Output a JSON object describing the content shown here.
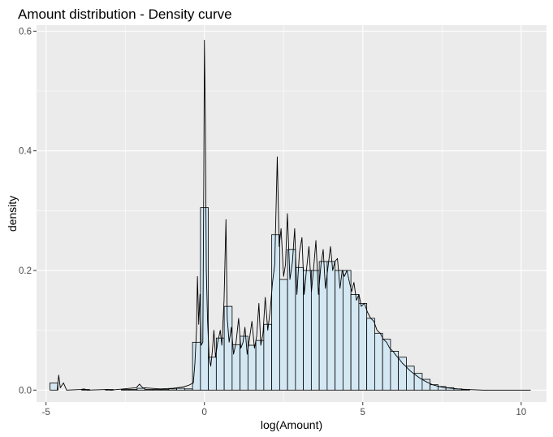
{
  "chart_data": {
    "type": "histogram+density",
    "title": "Amount distribution - Density curve",
    "xlabel": "log(Amount)",
    "ylabel": "density",
    "xlim": [
      -5.3,
      10.8
    ],
    "ylim": [
      -0.02,
      0.61
    ],
    "x_ticks": [
      -5,
      0,
      5,
      10
    ],
    "x_tick_labels": [
      "-5",
      "0",
      "5",
      "10"
    ],
    "y_ticks": [
      0.0,
      0.2,
      0.4,
      0.6
    ],
    "y_tick_labels": [
      "0.0",
      "0.2",
      "0.4",
      "0.6"
    ],
    "grid": true,
    "bin_width": 0.25,
    "bins": [
      [
        -4.75,
        0.012
      ],
      [
        -4.5,
        0.0
      ],
      [
        -4.25,
        0.0
      ],
      [
        -4.0,
        0.0
      ],
      [
        -3.75,
        0.001
      ],
      [
        -3.5,
        0.0
      ],
      [
        -3.25,
        0.0
      ],
      [
        -3.0,
        0.001
      ],
      [
        -2.75,
        0.0
      ],
      [
        -2.5,
        0.001
      ],
      [
        -2.25,
        0.001
      ],
      [
        -2.0,
        0.003
      ],
      [
        -1.75,
        0.001
      ],
      [
        -1.5,
        0.001
      ],
      [
        -1.25,
        0.001
      ],
      [
        -1.0,
        0.002
      ],
      [
        -0.75,
        0.003
      ],
      [
        -0.5,
        0.002
      ],
      [
        -0.25,
        0.08
      ],
      [
        0.0,
        0.305
      ],
      [
        0.25,
        0.055
      ],
      [
        0.5,
        0.087
      ],
      [
        0.75,
        0.14
      ],
      [
        1.0,
        0.076
      ],
      [
        1.25,
        0.09
      ],
      [
        1.5,
        0.075
      ],
      [
        1.75,
        0.083
      ],
      [
        2.0,
        0.11
      ],
      [
        2.25,
        0.26
      ],
      [
        2.5,
        0.185
      ],
      [
        2.75,
        0.235
      ],
      [
        3.0,
        0.205
      ],
      [
        3.25,
        0.2
      ],
      [
        3.5,
        0.2
      ],
      [
        3.75,
        0.215
      ],
      [
        4.0,
        0.215
      ],
      [
        4.25,
        0.2
      ],
      [
        4.5,
        0.2
      ],
      [
        4.75,
        0.16
      ],
      [
        5.0,
        0.145
      ],
      [
        5.25,
        0.12
      ],
      [
        5.5,
        0.095
      ],
      [
        5.75,
        0.085
      ],
      [
        6.0,
        0.065
      ],
      [
        6.25,
        0.055
      ],
      [
        6.5,
        0.04
      ],
      [
        6.75,
        0.028
      ],
      [
        7.0,
        0.018
      ],
      [
        7.25,
        0.009
      ],
      [
        7.5,
        0.006
      ],
      [
        7.75,
        0.004
      ],
      [
        8.0,
        0.002
      ],
      [
        8.25,
        0.001
      ],
      [
        8.5,
        0.0
      ],
      [
        10.25,
        0.0
      ]
    ],
    "density": [
      [
        -4.65,
        0.0
      ],
      [
        -4.6,
        0.025
      ],
      [
        -4.55,
        0.004
      ],
      [
        -4.45,
        0.012
      ],
      [
        -4.35,
        0.0
      ],
      [
        -3.9,
        0.001
      ],
      [
        -3.8,
        0.002
      ],
      [
        -3.7,
        0.0
      ],
      [
        -3.05,
        0.001
      ],
      [
        -2.95,
        0.0
      ],
      [
        -2.15,
        0.004
      ],
      [
        -2.05,
        0.01
      ],
      [
        -1.95,
        0.004
      ],
      [
        -1.4,
        0.002
      ],
      [
        -1.0,
        0.003
      ],
      [
        -0.7,
        0.005
      ],
      [
        -0.5,
        0.008
      ],
      [
        -0.35,
        0.012
      ],
      [
        -0.3,
        0.045
      ],
      [
        -0.25,
        0.1
      ],
      [
        -0.22,
        0.19
      ],
      [
        -0.18,
        0.11
      ],
      [
        -0.14,
        0.16
      ],
      [
        -0.1,
        0.075
      ],
      [
        -0.05,
        0.08
      ],
      [
        -0.02,
        0.35
      ],
      [
        0.0,
        0.585
      ],
      [
        0.03,
        0.45
      ],
      [
        0.06,
        0.2
      ],
      [
        0.1,
        0.115
      ],
      [
        0.15,
        0.055
      ],
      [
        0.2,
        0.04
      ],
      [
        0.25,
        0.065
      ],
      [
        0.3,
        0.1
      ],
      [
        0.35,
        0.055
      ],
      [
        0.42,
        0.08
      ],
      [
        0.5,
        0.1
      ],
      [
        0.55,
        0.075
      ],
      [
        0.62,
        0.15
      ],
      [
        0.68,
        0.285
      ],
      [
        0.72,
        0.12
      ],
      [
        0.78,
        0.08
      ],
      [
        0.85,
        0.105
      ],
      [
        0.92,
        0.06
      ],
      [
        1.0,
        0.08
      ],
      [
        1.08,
        0.12
      ],
      [
        1.15,
        0.07
      ],
      [
        1.22,
        0.08
      ],
      [
        1.28,
        0.105
      ],
      [
        1.35,
        0.06
      ],
      [
        1.42,
        0.085
      ],
      [
        1.5,
        0.115
      ],
      [
        1.58,
        0.07
      ],
      [
        1.65,
        0.09
      ],
      [
        1.72,
        0.145
      ],
      [
        1.78,
        0.075
      ],
      [
        1.85,
        0.095
      ],
      [
        1.92,
        0.155
      ],
      [
        2.0,
        0.1
      ],
      [
        2.08,
        0.135
      ],
      [
        2.15,
        0.18
      ],
      [
        2.22,
        0.21
      ],
      [
        2.3,
        0.39
      ],
      [
        2.36,
        0.24
      ],
      [
        2.42,
        0.27
      ],
      [
        2.5,
        0.19
      ],
      [
        2.56,
        0.21
      ],
      [
        2.62,
        0.295
      ],
      [
        2.7,
        0.185
      ],
      [
        2.78,
        0.215
      ],
      [
        2.85,
        0.27
      ],
      [
        2.92,
        0.16
      ],
      [
        3.0,
        0.23
      ],
      [
        3.08,
        0.255
      ],
      [
        3.15,
        0.16
      ],
      [
        3.22,
        0.2
      ],
      [
        3.3,
        0.24
      ],
      [
        3.38,
        0.165
      ],
      [
        3.45,
        0.205
      ],
      [
        3.52,
        0.25
      ],
      [
        3.6,
        0.16
      ],
      [
        3.68,
        0.21
      ],
      [
        3.75,
        0.235
      ],
      [
        3.82,
        0.17
      ],
      [
        3.9,
        0.205
      ],
      [
        3.98,
        0.24
      ],
      [
        4.05,
        0.2
      ],
      [
        4.12,
        0.215
      ],
      [
        4.2,
        0.22
      ],
      [
        4.28,
        0.17
      ],
      [
        4.35,
        0.2
      ],
      [
        4.42,
        0.19
      ],
      [
        4.5,
        0.2
      ],
      [
        4.58,
        0.18
      ],
      [
        4.65,
        0.165
      ],
      [
        4.72,
        0.18
      ],
      [
        4.8,
        0.15
      ],
      [
        4.88,
        0.16
      ],
      [
        4.95,
        0.14
      ],
      [
        5.05,
        0.145
      ],
      [
        5.15,
        0.13
      ],
      [
        5.25,
        0.12
      ],
      [
        5.35,
        0.115
      ],
      [
        5.45,
        0.1
      ],
      [
        5.55,
        0.095
      ],
      [
        5.65,
        0.085
      ],
      [
        5.75,
        0.08
      ],
      [
        5.85,
        0.07
      ],
      [
        5.95,
        0.065
      ],
      [
        6.05,
        0.058
      ],
      [
        6.15,
        0.052
      ],
      [
        6.25,
        0.045
      ],
      [
        6.35,
        0.04
      ],
      [
        6.5,
        0.032
      ],
      [
        6.65,
        0.026
      ],
      [
        6.8,
        0.02
      ],
      [
        7.0,
        0.014
      ],
      [
        7.2,
        0.009
      ],
      [
        7.4,
        0.006
      ],
      [
        7.6,
        0.004
      ],
      [
        7.8,
        0.003
      ],
      [
        8.0,
        0.002
      ],
      [
        8.3,
        0.001
      ],
      [
        8.8,
        0.0
      ],
      [
        10.3,
        0.0
      ]
    ]
  },
  "colors": {
    "panel_background": "#ebebeb",
    "gridline_major": "#ffffff",
    "bar_fill": "#d4e8f3",
    "outline": "#000000",
    "tick_label": "#4d4d4d"
  }
}
